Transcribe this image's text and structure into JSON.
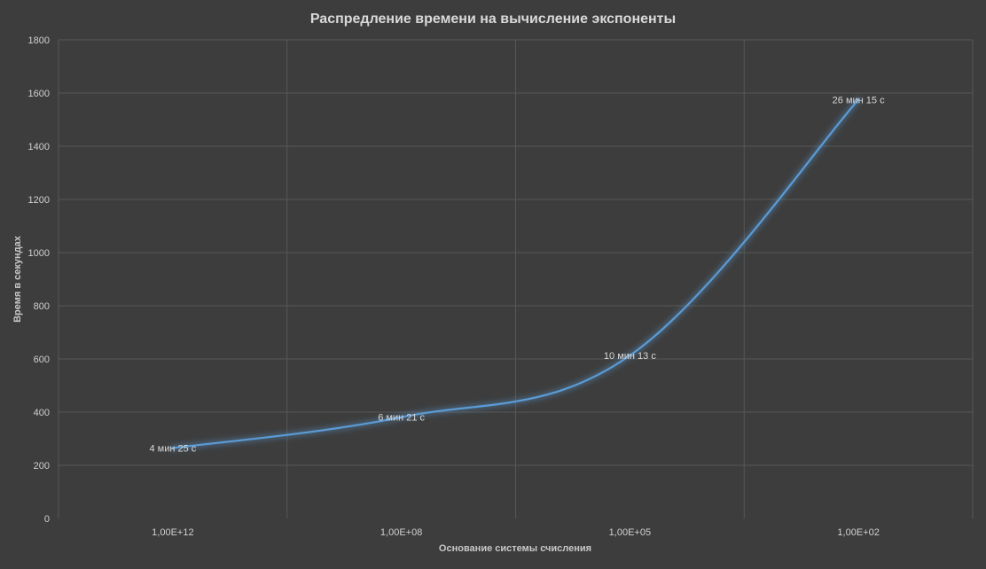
{
  "chart_data": {
    "type": "line",
    "title": "Распредление времени на вычисление экспоненты",
    "xlabel": "Основание системы счисления",
    "ylabel": "Время в секундах",
    "categories": [
      "1,00E+12",
      "1,00E+08",
      "1,00E+05",
      "1,00E+02"
    ],
    "series": [
      {
        "values": [
          265,
          381,
          613,
          1575
        ],
        "data_labels": [
          "4 мин 25 с",
          "6 мин 21 с",
          "10 мин 13 с",
          "26 мин 15 с"
        ],
        "color": "#5b9bd5"
      }
    ],
    "ylim": [
      0,
      1800
    ],
    "yticks": [
      0,
      200,
      400,
      600,
      800,
      1000,
      1200,
      1400,
      1600,
      1800
    ],
    "grid": true,
    "legend": "none"
  }
}
